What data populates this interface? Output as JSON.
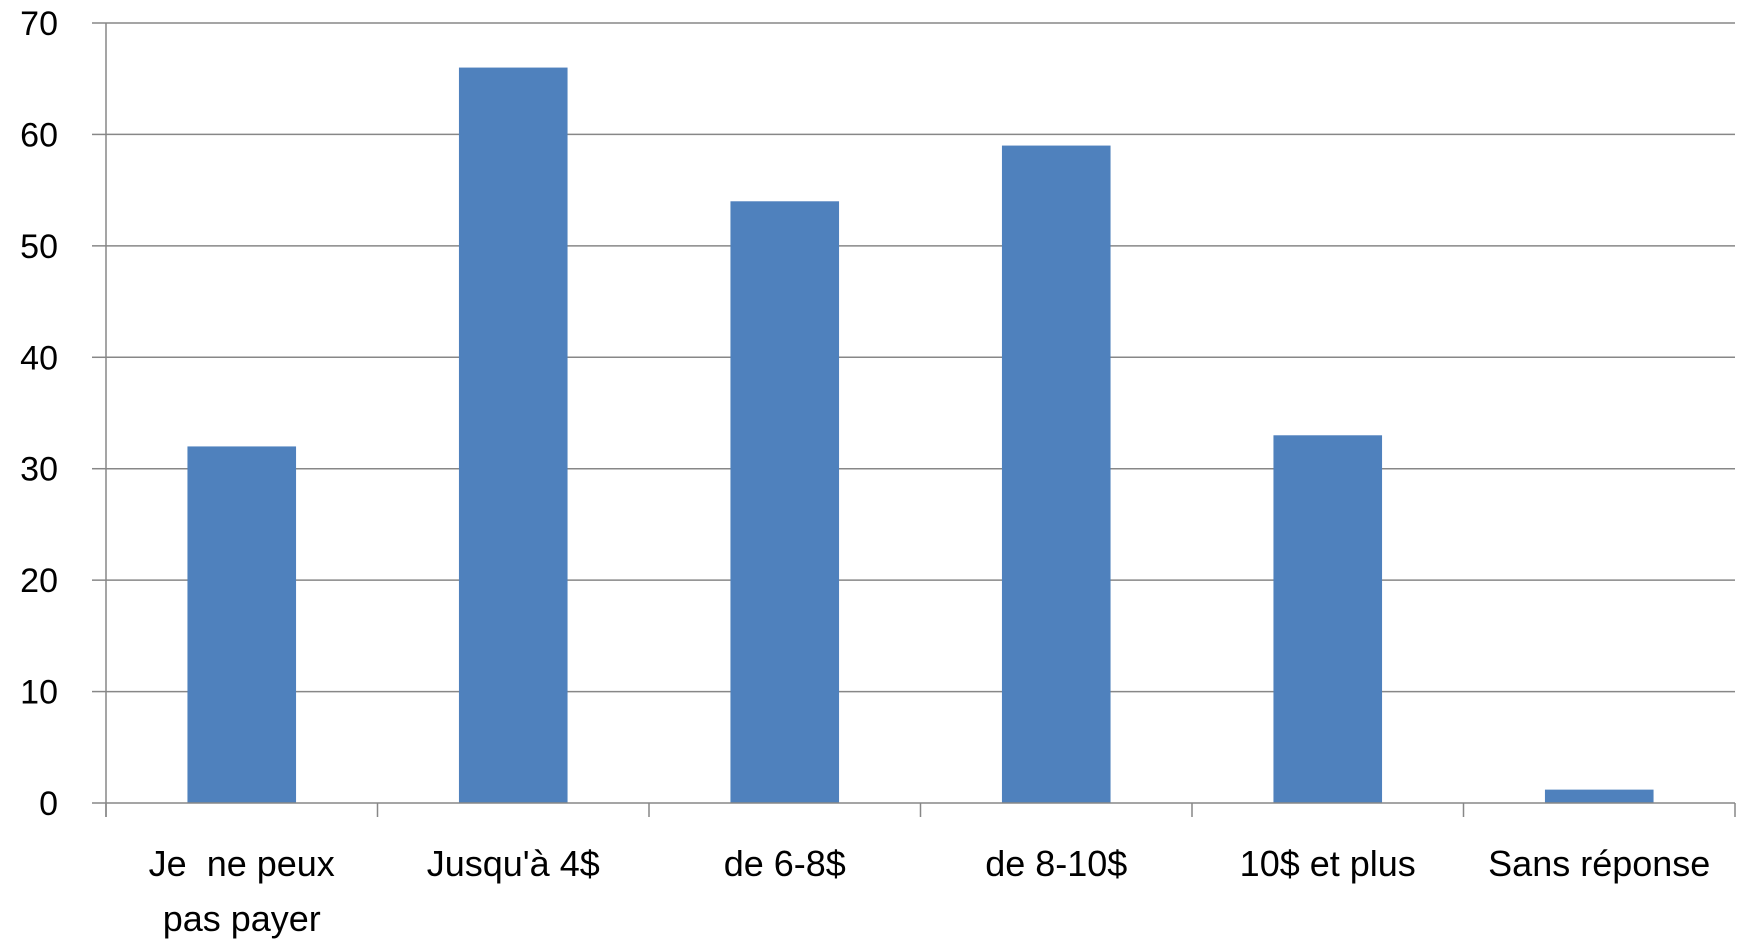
{
  "chart_data": {
    "type": "bar",
    "title": "",
    "xlabel": "",
    "ylabel": "",
    "categories": [
      [
        "Je  ne peux",
        "pas payer"
      ],
      [
        "Jusqu'à 4$"
      ],
      [
        "de 6-8$"
      ],
      [
        "de 8-10$"
      ],
      [
        "10$ et plus"
      ],
      [
        "Sans réponse"
      ]
    ],
    "values": [
      32,
      66,
      54,
      59,
      33,
      1.2
    ],
    "ylim": [
      0,
      70
    ],
    "yticks": [
      0,
      10,
      20,
      30,
      40,
      50,
      60,
      70
    ],
    "grid": true,
    "legend": "none",
    "colors": {
      "bar": "#4F81BD",
      "grid": "#878787",
      "axis": "#878787"
    }
  }
}
